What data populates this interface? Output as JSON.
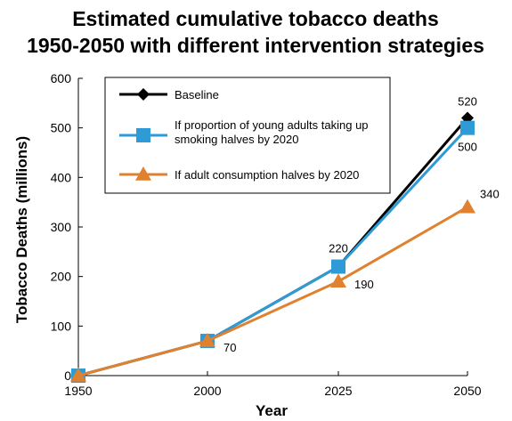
{
  "chart_data": {
    "type": "line",
    "title": [
      "Estimated cumulative tobacco deaths",
      "1950-2050 with different intervention strategies"
    ],
    "xlabel": "Year",
    "ylabel": "Tobacco Deaths (millions)",
    "x": [
      "1950",
      "2000",
      "2025",
      "2050"
    ],
    "ylim": [
      0,
      600
    ],
    "yticks": [
      0,
      100,
      200,
      300,
      400,
      500,
      600
    ],
    "grid": false,
    "legend_position": "top-left",
    "series": [
      {
        "name": "Baseline",
        "values": [
          0,
          70,
          220,
          520
        ],
        "color": "#000000",
        "marker": "diamond"
      },
      {
        "name": [
          "If proportion of young adults taking up",
          "smoking halves by 2020"
        ],
        "values": [
          0,
          70,
          220,
          500
        ],
        "color": "#2e9bd6",
        "marker": "square"
      },
      {
        "name": "If adult consumption halves by 2020",
        "values": [
          0,
          70,
          190,
          340
        ],
        "color": "#e0812f",
        "marker": "triangle"
      }
    ],
    "data_labels": [
      {
        "text": "520",
        "series": 0,
        "index": 3
      },
      {
        "text": "500",
        "series": 1,
        "index": 3
      },
      {
        "text": "340",
        "series": 2,
        "index": 3
      },
      {
        "text": "220",
        "series": 1,
        "index": 2
      },
      {
        "text": "190",
        "series": 2,
        "index": 2
      },
      {
        "text": "70",
        "series": 2,
        "index": 1
      }
    ]
  }
}
